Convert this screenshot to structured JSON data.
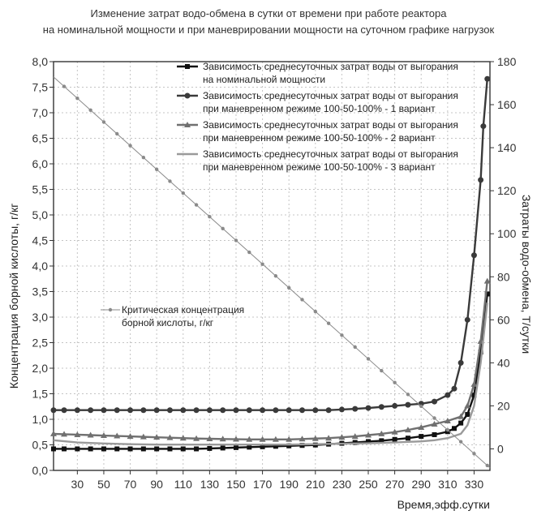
{
  "chart_data": {
    "type": "line",
    "title_line1": "Изменение затрат водо-обмена в сутки от времени при работе реактора",
    "title_line2": "на номинальной мощности и при маневрировании мощности на суточном графике нагрузок",
    "xlabel": "Время,эфф.сутки",
    "ylabel_left": "Концентрация борной кислоты, г/кг",
    "ylabel_right": "Затраты водо-обмена, Т/сутки",
    "xlim": [
      12,
      342
    ],
    "xticks": [
      30,
      50,
      70,
      90,
      110,
      130,
      150,
      170,
      190,
      210,
      230,
      250,
      270,
      290,
      310,
      330
    ],
    "ylim_left": [
      0,
      8
    ],
    "yticks_left": [
      "0,0",
      "0,5",
      "1,0",
      "1,5",
      "2,0",
      "2,5",
      "3,0",
      "3,5",
      "4,0",
      "4,5",
      "5,0",
      "5,5",
      "6,0",
      "6,5",
      "7,0",
      "7,5",
      "8,0"
    ],
    "ylim_right": [
      -10,
      180
    ],
    "yticks_right": [
      0,
      20,
      40,
      60,
      80,
      100,
      120,
      140,
      160,
      180
    ],
    "grid": true,
    "legend_position": "top-right",
    "legend": [
      {
        "line1": "Зависимость среднесуточных затрат воды от выгорания",
        "line2": "на номинальной мощности"
      },
      {
        "line1": "Зависимость среднесуточных затрат воды от выгорания",
        "line2": "при маневренном режиме 100-50-100% - 1 вариант"
      },
      {
        "line1": "Зависимость среднесуточных затрат воды от выгорания",
        "line2": "при маневренном режиме 100-50-100% - 2 вариант"
      },
      {
        "line1": "Зависимость среднесуточных затрат воды от выгорания",
        "line2": "при маневренном режиме 100-50-100% - 3 вариант"
      }
    ],
    "legend2": {
      "line1": "Критическая концентрация",
      "line2": "борной кислоты, г/кг"
    },
    "series": [
      {
        "name": "Зависимость среднесуточных затрат воды от выгорания на номинальной мощности",
        "axis": "right",
        "color": "#111111",
        "marker": "square",
        "x": [
          12,
          20,
          30,
          40,
          50,
          60,
          70,
          80,
          90,
          100,
          110,
          120,
          130,
          140,
          150,
          160,
          170,
          180,
          190,
          200,
          210,
          220,
          230,
          240,
          250,
          260,
          270,
          280,
          290,
          300,
          310,
          315,
          320,
          325,
          330,
          335,
          340
        ],
        "y": [
          0,
          0,
          0,
          0,
          0,
          0,
          0,
          0,
          0,
          0,
          0,
          0,
          0.2,
          0.4,
          0.6,
          0.8,
          1,
          1.2,
          1.4,
          1.6,
          1.8,
          2.2,
          2.6,
          3,
          3.4,
          3.8,
          4.4,
          5,
          5.8,
          6.6,
          8,
          9.5,
          12,
          16,
          25,
          45,
          72
        ]
      },
      {
        "name": "Зависимость среднесуточных затрат воды от выгорания при маневренном режиме 100-50-100% - 1 вариант",
        "axis": "right",
        "color": "#3a3a3a",
        "marker": "circle",
        "x": [
          12,
          20,
          30,
          40,
          50,
          60,
          70,
          80,
          90,
          100,
          110,
          120,
          130,
          140,
          150,
          160,
          170,
          180,
          190,
          200,
          210,
          220,
          230,
          240,
          250,
          260,
          270,
          280,
          290,
          300,
          310,
          315,
          320,
          325,
          330,
          335,
          337,
          340
        ],
        "y": [
          18,
          18,
          18,
          18,
          18,
          18,
          18,
          18,
          18,
          18,
          18,
          18,
          18,
          18,
          18,
          18,
          18,
          18,
          18,
          18,
          18,
          18,
          18.3,
          18.6,
          19,
          19.5,
          20,
          20.5,
          21,
          22,
          25,
          28,
          40,
          60,
          90,
          125,
          150,
          172
        ]
      },
      {
        "name": "Зависимость среднесуточных затрат воды от выгорания при маневренном режиме 100-50-100% - 2 вариант",
        "axis": "right",
        "color": "#707070",
        "marker": "triangle",
        "x": [
          12,
          20,
          30,
          40,
          50,
          60,
          70,
          80,
          90,
          100,
          110,
          120,
          130,
          140,
          150,
          160,
          170,
          180,
          190,
          200,
          210,
          220,
          230,
          240,
          250,
          260,
          270,
          280,
          290,
          300,
          310,
          320,
          325,
          330,
          335,
          340
        ],
        "y": [
          7,
          6.8,
          6.6,
          6.4,
          6.2,
          6,
          5.8,
          5.6,
          5.4,
          5.2,
          5,
          4.8,
          4.7,
          4.6,
          4.5,
          4.4,
          4.4,
          4.4,
          4.4,
          4.6,
          4.8,
          5,
          5.4,
          5.8,
          6.4,
          7,
          7.8,
          8.8,
          10,
          11.5,
          13,
          15,
          20,
          30,
          50,
          78
        ]
      },
      {
        "name": "Зависимость среднесуточных затрат воды от выгорания при маневренном режиме 100-50-100% - 3 вариант",
        "axis": "right",
        "color": "#9a9a9a",
        "marker": "none",
        "x": [
          12,
          30,
          50,
          70,
          90,
          110,
          130,
          150,
          170,
          190,
          210,
          230,
          250,
          270,
          290,
          300,
          310,
          320,
          325,
          330,
          335,
          340
        ],
        "y": [
          4,
          3,
          2.5,
          2.2,
          2,
          2,
          2,
          2,
          2,
          2,
          2.2,
          2.4,
          2.6,
          3,
          3.5,
          4,
          5,
          7,
          11,
          20,
          40,
          68
        ]
      },
      {
        "name": "Критическая концентрация борной кислоты, г/кг",
        "axis": "left",
        "color": "#8a8a8a",
        "marker": "star",
        "x": [
          12,
          342
        ],
        "y": [
          7.7,
          0.05
        ]
      }
    ]
  }
}
